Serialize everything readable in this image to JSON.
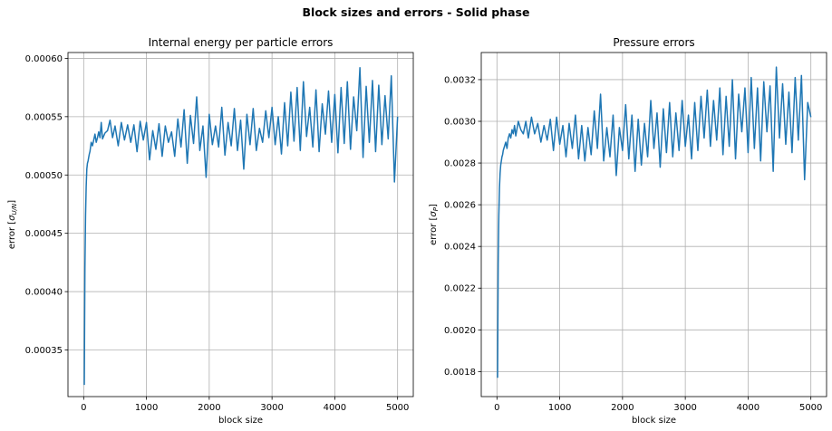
{
  "figure": {
    "suptitle": "Block sizes and errors - Solid phase"
  },
  "chart_data": [
    {
      "type": "line",
      "title": "Internal energy per particle errors",
      "xlabel": "block size",
      "ylabel": "error [σU/N]",
      "ylabel_main": "error [",
      "ylabel_sigma": "σ",
      "ylabel_sub": "U/N",
      "ylabel_close": "]",
      "xlim": [
        -250,
        5250
      ],
      "ylim": [
        0.00031,
        0.000605
      ],
      "xticks": [
        0,
        1000,
        2000,
        3000,
        4000,
        5000
      ],
      "xtick_labels": [
        "0",
        "1000",
        "2000",
        "3000",
        "4000",
        "5000"
      ],
      "yticks": [
        0.00035,
        0.0004,
        0.00045,
        0.0005,
        0.00055,
        0.0006
      ],
      "ytick_labels": [
        "0.00035",
        "0.00040",
        "0.00045",
        "0.00050",
        "0.00055",
        "0.00060"
      ],
      "grid": true,
      "color": "#1f77b4",
      "series": [
        {
          "x": [
            10,
            20,
            30,
            40,
            50,
            60,
            70,
            80,
            90,
            100,
            120,
            140,
            160,
            180,
            200,
            220,
            240,
            260,
            280,
            300,
            340,
            380,
            420,
            460,
            500,
            550,
            600,
            650,
            700,
            750,
            800,
            850,
            900,
            950,
            1000,
            1050,
            1100,
            1150,
            1200,
            1250,
            1300,
            1350,
            1400,
            1450,
            1500,
            1550,
            1600,
            1650,
            1700,
            1750,
            1800,
            1850,
            1900,
            1950,
            2000,
            2050,
            2100,
            2150,
            2200,
            2250,
            2300,
            2350,
            2400,
            2450,
            2500,
            2550,
            2600,
            2650,
            2700,
            2750,
            2800,
            2850,
            2900,
            2950,
            3000,
            3050,
            3100,
            3150,
            3200,
            3250,
            3300,
            3350,
            3400,
            3450,
            3500,
            3550,
            3600,
            3650,
            3700,
            3750,
            3800,
            3850,
            3900,
            3950,
            4000,
            4050,
            4100,
            4150,
            4200,
            4250,
            4300,
            4350,
            4400,
            4450,
            4500,
            4550,
            4600,
            4650,
            4700,
            4750,
            4800,
            4850,
            4900,
            4950,
            5000
          ],
          "y": [
            0.00032,
            0.00042,
            0.000465,
            0.00049,
            0.000505,
            0.00051,
            0.000512,
            0.000515,
            0.000518,
            0.00052,
            0.000528,
            0.000525,
            0.00053,
            0.000535,
            0.000528,
            0.000532,
            0.000537,
            0.000532,
            0.000545,
            0.000531,
            0.000536,
            0.000538,
            0.000547,
            0.000532,
            0.000542,
            0.000525,
            0.000545,
            0.00053,
            0.000543,
            0.000528,
            0.000543,
            0.00052,
            0.000546,
            0.00053,
            0.000545,
            0.000513,
            0.000538,
            0.000522,
            0.000544,
            0.000516,
            0.000542,
            0.000528,
            0.000537,
            0.000516,
            0.000548,
            0.000524,
            0.000556,
            0.00051,
            0.000551,
            0.000527,
            0.000567,
            0.000521,
            0.000542,
            0.000498,
            0.000552,
            0.000526,
            0.000542,
            0.000524,
            0.000558,
            0.000517,
            0.000545,
            0.000525,
            0.000557,
            0.000521,
            0.000547,
            0.000505,
            0.000552,
            0.000526,
            0.000557,
            0.000521,
            0.00054,
            0.000528,
            0.000555,
            0.000532,
            0.000558,
            0.000526,
            0.00055,
            0.000518,
            0.000562,
            0.000525,
            0.000571,
            0.000529,
            0.000575,
            0.000521,
            0.00058,
            0.000533,
            0.000558,
            0.000524,
            0.000573,
            0.00052,
            0.000561,
            0.000535,
            0.000572,
            0.000528,
            0.000569,
            0.000519,
            0.000575,
            0.000527,
            0.00058,
            0.000522,
            0.000567,
            0.000538,
            0.000592,
            0.000515,
            0.000576,
            0.000528,
            0.000581,
            0.00052,
            0.000577,
            0.000526,
            0.000568,
            0.000531,
            0.000585,
            0.000494,
            0.00055
          ]
        }
      ]
    },
    {
      "type": "line",
      "title": "Pressure errors",
      "xlabel": "block size",
      "ylabel": "error [σP]",
      "ylabel_main": "error [",
      "ylabel_sigma": "σ",
      "ylabel_sub": "P",
      "ylabel_close": "]",
      "xlim": [
        -250,
        5250
      ],
      "ylim": [
        0.00168,
        0.00333
      ],
      "xticks": [
        0,
        1000,
        2000,
        3000,
        4000,
        5000
      ],
      "xtick_labels": [
        "0",
        "1000",
        "2000",
        "3000",
        "4000",
        "5000"
      ],
      "yticks": [
        0.0018,
        0.002,
        0.0022,
        0.0024,
        0.0026,
        0.0028,
        0.003,
        0.0032
      ],
      "ytick_labels": [
        "0.0018",
        "0.0020",
        "0.0022",
        "0.0024",
        "0.0026",
        "0.0028",
        "0.0030",
        "0.0032"
      ],
      "grid": true,
      "color": "#1f77b4",
      "series": [
        {
          "x": [
            10,
            20,
            30,
            40,
            50,
            60,
            70,
            80,
            90,
            100,
            120,
            140,
            160,
            180,
            200,
            220,
            240,
            260,
            280,
            300,
            340,
            380,
            420,
            460,
            500,
            550,
            600,
            650,
            700,
            750,
            800,
            850,
            900,
            950,
            1000,
            1050,
            1100,
            1150,
            1200,
            1250,
            1300,
            1350,
            1400,
            1450,
            1500,
            1550,
            1600,
            1650,
            1700,
            1750,
            1800,
            1850,
            1900,
            1950,
            2000,
            2050,
            2100,
            2150,
            2200,
            2250,
            2300,
            2350,
            2400,
            2450,
            2500,
            2550,
            2600,
            2650,
            2700,
            2750,
            2800,
            2850,
            2900,
            2950,
            3000,
            3050,
            3100,
            3150,
            3200,
            3250,
            3300,
            3350,
            3400,
            3450,
            3500,
            3550,
            3600,
            3650,
            3700,
            3750,
            3800,
            3850,
            3900,
            3950,
            4000,
            4050,
            4100,
            4150,
            4200,
            4250,
            4300,
            4350,
            4400,
            4450,
            4500,
            4550,
            4600,
            4650,
            4700,
            4750,
            4800,
            4850,
            4900,
            4950,
            5000
          ],
          "y": [
            0.00177,
            0.00232,
            0.00255,
            0.00268,
            0.00275,
            0.00279,
            0.00281,
            0.00283,
            0.00284,
            0.00286,
            0.00288,
            0.0029,
            0.00287,
            0.00292,
            0.00294,
            0.00292,
            0.00296,
            0.00294,
            0.00298,
            0.00293,
            0.003,
            0.00296,
            0.00294,
            0.003,
            0.00292,
            0.00302,
            0.00294,
            0.00299,
            0.0029,
            0.00298,
            0.00291,
            0.00301,
            0.00286,
            0.00302,
            0.00289,
            0.00298,
            0.00283,
            0.00299,
            0.00287,
            0.00303,
            0.00282,
            0.00298,
            0.00281,
            0.00297,
            0.00284,
            0.00305,
            0.00287,
            0.00313,
            0.00281,
            0.00297,
            0.00283,
            0.00303,
            0.00274,
            0.00297,
            0.00286,
            0.00308,
            0.00282,
            0.00303,
            0.00276,
            0.00301,
            0.00279,
            0.00299,
            0.00283,
            0.0031,
            0.00287,
            0.00304,
            0.00278,
            0.00306,
            0.00285,
            0.00309,
            0.00283,
            0.00304,
            0.00286,
            0.0031,
            0.00288,
            0.00303,
            0.00282,
            0.00309,
            0.00286,
            0.00312,
            0.00292,
            0.00315,
            0.00288,
            0.0031,
            0.00291,
            0.00316,
            0.00284,
            0.00312,
            0.00288,
            0.0032,
            0.00282,
            0.00313,
            0.00295,
            0.00316,
            0.00285,
            0.00321,
            0.00287,
            0.00316,
            0.00281,
            0.00319,
            0.00295,
            0.00317,
            0.00276,
            0.00326,
            0.00292,
            0.00318,
            0.00289,
            0.00314,
            0.00285,
            0.00321,
            0.00291,
            0.00322,
            0.00272,
            0.00309,
            0.00302
          ]
        }
      ]
    }
  ]
}
